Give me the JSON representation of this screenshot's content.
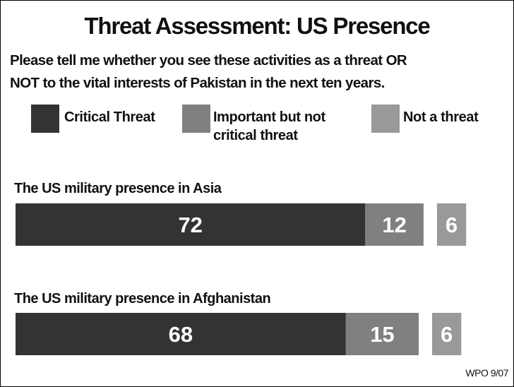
{
  "title": "Threat Assessment: US Presence",
  "question_line1": "Please tell me whether you see these activities as a threat OR",
  "question_line2": "NOT to the vital interests of Pakistan in the next ten years.",
  "legend": [
    {
      "label_line1": "Critical Threat",
      "label_line2": "",
      "color": "#333333",
      "icon": "dark-swatch"
    },
    {
      "label_line1": "Important but not",
      "label_line2": "critical threat",
      "color": "#808080",
      "icon": "gray-swatch"
    },
    {
      "label_line1": "Not a threat",
      "label_line2": "",
      "color": "#999999",
      "icon": "light-gray-swatch"
    }
  ],
  "rows": [
    {
      "label": "The US military presence in Asia"
    },
    {
      "label": "The US military presence in Afghanistan"
    }
  ],
  "source": "WPO 9/07",
  "chart_data": {
    "type": "bar",
    "orientation": "horizontal",
    "stacked": true,
    "title": "Threat Assessment: US Presence",
    "categories": [
      "The US military presence in Asia",
      "The US military presence in Afghanistan"
    ],
    "series": [
      {
        "name": "Critical Threat",
        "values": [
          72,
          68
        ],
        "color": "#333333"
      },
      {
        "name": "Important but not critical threat",
        "values": [
          12,
          15
        ],
        "color": "#808080"
      },
      {
        "name": "Not a threat",
        "values": [
          6,
          6
        ],
        "color": "#999999"
      }
    ],
    "xlim": [
      0,
      100
    ],
    "grid": false,
    "legend_position": "top"
  }
}
